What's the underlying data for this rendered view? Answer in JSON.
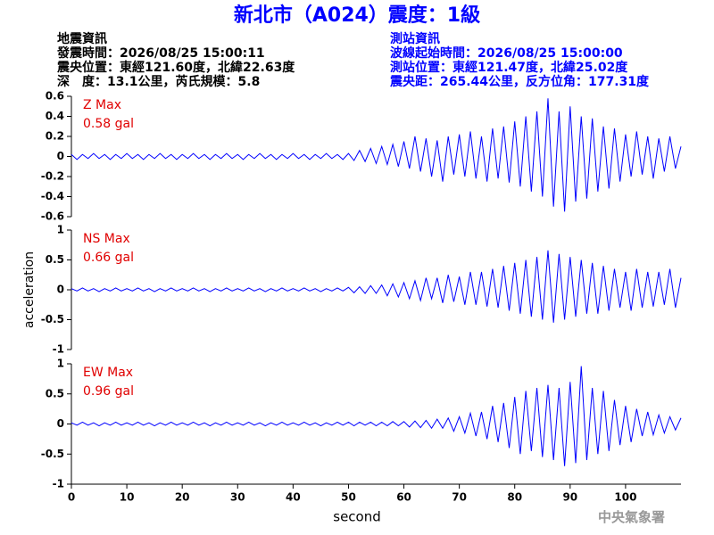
{
  "header": {
    "title": "新北市（A024）震度：1級",
    "left": [
      "地震資訊",
      "發震時間：2026/08/25 15:00:11",
      "震央位置：東經121.60度，北緯22.63度",
      "深　度：13.1公里，芮氏規模：5.8"
    ],
    "right": [
      "測站資訊",
      "波線起始時間：2026/08/25 15:00:00",
      "測站位置：東經121.47度，北緯25.02度",
      "震央距：265.44公里，反方位角：177.31度"
    ],
    "footer": "中央氣象署"
  },
  "chart_data": [
    {
      "type": "line",
      "annotations": [
        "Z Max",
        "0.58 gal"
      ],
      "color": "#0000ff",
      "xlim": [
        0,
        110
      ],
      "ylim": [
        -0.6,
        0.6
      ],
      "yticks": [
        0.6,
        0.4,
        0.2,
        0,
        -0.2,
        -0.4,
        -0.6
      ],
      "x": [
        0,
        1,
        2,
        3,
        4,
        5,
        6,
        7,
        8,
        9,
        10,
        11,
        12,
        13,
        14,
        15,
        16,
        17,
        18,
        19,
        20,
        21,
        22,
        23,
        24,
        25,
        26,
        27,
        28,
        29,
        30,
        31,
        32,
        33,
        34,
        35,
        36,
        37,
        38,
        39,
        40,
        41,
        42,
        43,
        44,
        45,
        46,
        47,
        48,
        49,
        50,
        51,
        52,
        53,
        54,
        55,
        56,
        57,
        58,
        59,
        60,
        61,
        62,
        63,
        64,
        65,
        66,
        67,
        68,
        69,
        70,
        71,
        72,
        73,
        74,
        75,
        76,
        77,
        78,
        79,
        80,
        81,
        82,
        83,
        84,
        85,
        86,
        87,
        88,
        89,
        90,
        91,
        92,
        93,
        94,
        95,
        96,
        97,
        98,
        99,
        100,
        101,
        102,
        103,
        104,
        105,
        106,
        107,
        108,
        109,
        110
      ],
      "values": [
        0.02,
        -0.03,
        0.02,
        -0.02,
        0.03,
        -0.02,
        0.02,
        -0.03,
        0.02,
        -0.02,
        0.03,
        -0.02,
        0.02,
        -0.03,
        0.02,
        -0.02,
        0.03,
        -0.02,
        0.02,
        -0.03,
        0.02,
        -0.02,
        0.03,
        -0.02,
        0.02,
        -0.03,
        0.02,
        -0.02,
        0.03,
        -0.02,
        0.02,
        -0.03,
        0.02,
        -0.02,
        0.03,
        -0.02,
        0.02,
        -0.03,
        0.02,
        -0.02,
        0.03,
        -0.02,
        0.02,
        -0.03,
        0.02,
        -0.02,
        0.03,
        -0.02,
        0.02,
        -0.03,
        0.03,
        -0.04,
        0.06,
        -0.05,
        0.08,
        -0.07,
        0.1,
        -0.08,
        0.12,
        -0.1,
        0.15,
        -0.12,
        0.2,
        -0.15,
        0.18,
        -0.2,
        0.16,
        -0.25,
        0.2,
        -0.18,
        0.22,
        -0.2,
        0.25,
        -0.22,
        0.2,
        -0.25,
        0.28,
        -0.22,
        0.3,
        -0.26,
        0.35,
        -0.3,
        0.4,
        -0.35,
        0.45,
        -0.4,
        0.58,
        -0.5,
        0.45,
        -0.55,
        0.5,
        -0.45,
        0.4,
        -0.42,
        0.38,
        -0.35,
        0.3,
        -0.32,
        0.28,
        -0.25,
        0.22,
        -0.2,
        0.25,
        -0.18,
        0.2,
        -0.22,
        0.18,
        -0.15,
        0.2,
        -0.12,
        0.1
      ]
    },
    {
      "type": "line",
      "annotations": [
        "NS Max",
        "0.66 gal"
      ],
      "color": "#0000ff",
      "ylabel": "acceleration",
      "xlim": [
        0,
        110
      ],
      "ylim": [
        -1,
        1
      ],
      "yticks": [
        1,
        0.5,
        0,
        -0.5,
        -1
      ],
      "x": [
        0,
        1,
        2,
        3,
        4,
        5,
        6,
        7,
        8,
        9,
        10,
        11,
        12,
        13,
        14,
        15,
        16,
        17,
        18,
        19,
        20,
        21,
        22,
        23,
        24,
        25,
        26,
        27,
        28,
        29,
        30,
        31,
        32,
        33,
        34,
        35,
        36,
        37,
        38,
        39,
        40,
        41,
        42,
        43,
        44,
        45,
        46,
        47,
        48,
        49,
        50,
        51,
        52,
        53,
        54,
        55,
        56,
        57,
        58,
        59,
        60,
        61,
        62,
        63,
        64,
        65,
        66,
        67,
        68,
        69,
        70,
        71,
        72,
        73,
        74,
        75,
        76,
        77,
        78,
        79,
        80,
        81,
        82,
        83,
        84,
        85,
        86,
        87,
        88,
        89,
        90,
        91,
        92,
        93,
        94,
        95,
        96,
        97,
        98,
        99,
        100,
        101,
        102,
        103,
        104,
        105,
        106,
        107,
        108,
        109,
        110
      ],
      "values": [
        0.02,
        -0.02,
        0.03,
        -0.02,
        0.02,
        -0.03,
        0.02,
        -0.02,
        0.03,
        -0.02,
        0.02,
        -0.02,
        0.03,
        -0.02,
        0.02,
        -0.03,
        0.02,
        -0.02,
        0.03,
        -0.02,
        0.02,
        -0.02,
        0.03,
        -0.02,
        0.02,
        -0.03,
        0.02,
        -0.02,
        0.03,
        -0.02,
        0.02,
        -0.02,
        0.03,
        -0.02,
        0.02,
        -0.03,
        0.02,
        -0.02,
        0.03,
        -0.02,
        0.02,
        -0.02,
        0.03,
        -0.02,
        0.02,
        -0.03,
        0.02,
        -0.02,
        0.03,
        -0.02,
        0.04,
        -0.05,
        0.05,
        -0.06,
        0.07,
        -0.06,
        0.08,
        -0.1,
        0.1,
        -0.12,
        0.12,
        -0.15,
        0.15,
        -0.18,
        0.2,
        -0.15,
        0.2,
        -0.22,
        0.25,
        -0.2,
        0.22,
        -0.25,
        0.3,
        -0.25,
        0.3,
        -0.28,
        0.35,
        -0.3,
        0.4,
        -0.35,
        0.45,
        -0.4,
        0.5,
        -0.45,
        0.55,
        -0.5,
        0.66,
        -0.55,
        0.6,
        -0.5,
        0.55,
        -0.45,
        0.5,
        -0.4,
        0.45,
        -0.4,
        0.4,
        -0.35,
        0.35,
        -0.3,
        0.3,
        -0.35,
        0.35,
        -0.3,
        0.3,
        -0.28,
        0.3,
        -0.25,
        0.35,
        -0.3,
        0.2
      ]
    },
    {
      "type": "line",
      "annotations": [
        "EW Max",
        "0.96 gal"
      ],
      "color": "#0000ff",
      "xlabel": "second",
      "xlim": [
        0,
        110
      ],
      "ylim": [
        -1,
        1
      ],
      "yticks": [
        1,
        0.5,
        0,
        -0.5,
        -1
      ],
      "xticks": [
        0,
        10,
        20,
        30,
        40,
        50,
        60,
        70,
        80,
        90,
        100
      ],
      "x": [
        0,
        1,
        2,
        3,
        4,
        5,
        6,
        7,
        8,
        9,
        10,
        11,
        12,
        13,
        14,
        15,
        16,
        17,
        18,
        19,
        20,
        21,
        22,
        23,
        24,
        25,
        26,
        27,
        28,
        29,
        30,
        31,
        32,
        33,
        34,
        35,
        36,
        37,
        38,
        39,
        40,
        41,
        42,
        43,
        44,
        45,
        46,
        47,
        48,
        49,
        50,
        51,
        52,
        53,
        54,
        55,
        56,
        57,
        58,
        59,
        60,
        61,
        62,
        63,
        64,
        65,
        66,
        67,
        68,
        69,
        70,
        71,
        72,
        73,
        74,
        75,
        76,
        77,
        78,
        79,
        80,
        81,
        82,
        83,
        84,
        85,
        86,
        87,
        88,
        89,
        90,
        91,
        92,
        93,
        94,
        95,
        96,
        97,
        98,
        99,
        100,
        101,
        102,
        103,
        104,
        105,
        106,
        107,
        108,
        109,
        110
      ],
      "values": [
        0.02,
        -0.02,
        0.03,
        -0.02,
        0.02,
        -0.03,
        0.02,
        -0.02,
        0.03,
        -0.02,
        0.02,
        -0.02,
        0.03,
        -0.02,
        0.02,
        -0.03,
        0.02,
        -0.02,
        0.03,
        -0.02,
        0.02,
        -0.02,
        0.03,
        -0.02,
        0.02,
        -0.03,
        0.02,
        -0.02,
        0.03,
        -0.02,
        0.02,
        -0.02,
        0.03,
        -0.02,
        0.02,
        -0.03,
        0.02,
        -0.02,
        0.03,
        -0.02,
        0.02,
        -0.02,
        0.03,
        -0.02,
        0.02,
        -0.03,
        0.02,
        -0.02,
        0.03,
        -0.02,
        0.03,
        -0.03,
        0.03,
        -0.02,
        0.03,
        -0.03,
        0.03,
        -0.03,
        0.04,
        -0.03,
        0.04,
        -0.05,
        0.05,
        -0.06,
        0.06,
        -0.07,
        0.08,
        -0.07,
        0.1,
        -0.12,
        0.12,
        -0.15,
        0.18,
        -0.2,
        0.2,
        -0.25,
        0.3,
        -0.3,
        0.35,
        -0.4,
        0.45,
        -0.5,
        0.55,
        -0.45,
        0.6,
        -0.55,
        0.65,
        -0.6,
        0.6,
        -0.7,
        0.7,
        -0.65,
        0.96,
        -0.6,
        0.6,
        -0.5,
        0.55,
        -0.45,
        0.4,
        -0.35,
        0.3,
        -0.3,
        0.25,
        -0.2,
        0.2,
        -0.18,
        0.15,
        -0.15,
        0.12,
        -0.1,
        0.1
      ]
    }
  ]
}
